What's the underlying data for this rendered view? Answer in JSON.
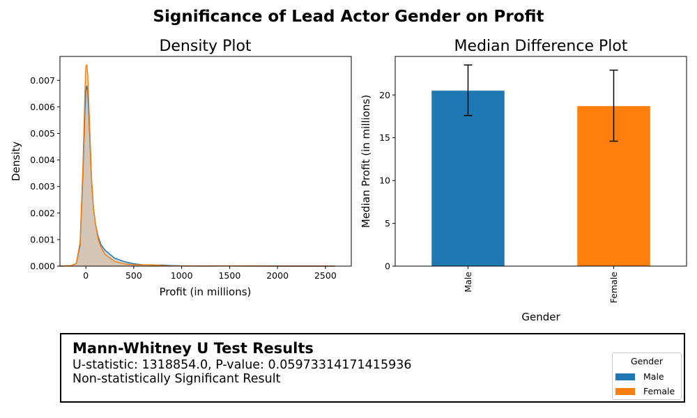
{
  "figure": {
    "suptitle": "Significance of Lead Actor Gender on Profit"
  },
  "colors": {
    "male": "#1f77b4",
    "female": "#ff7f0e",
    "fill_overlap": "#c4b09b"
  },
  "chart_data": [
    {
      "type": "area",
      "title": "Density Plot",
      "xlabel": "Profit (in millions)",
      "ylabel": "Density",
      "xlim": [
        -270,
        2770
      ],
      "ylim": [
        0,
        0.0079
      ],
      "xticks": [
        0,
        500,
        1000,
        1500,
        2000,
        2500
      ],
      "yticks": [
        "0.000",
        "0.001",
        "0.002",
        "0.003",
        "0.004",
        "0.005",
        "0.006",
        "0.007"
      ],
      "ytick_values": [
        0,
        0.001,
        0.002,
        0.003,
        0.004,
        0.005,
        0.006,
        0.007
      ],
      "grid": false,
      "series": [
        {
          "name": "Male",
          "x": [
            -270,
            -150,
            -100,
            -60,
            -30,
            -10,
            0,
            10,
            20,
            40,
            60,
            80,
            100,
            130,
            160,
            200,
            300,
            400,
            500,
            600,
            700,
            800,
            900,
            1000,
            1200,
            1500,
            1800,
            2100,
            2400,
            2600
          ],
          "y": [
            0,
            2e-05,
            0.0001,
            0.0008,
            0.0035,
            0.0058,
            0.0066,
            0.0068,
            0.0066,
            0.005,
            0.0032,
            0.0022,
            0.0016,
            0.0011,
            0.0008,
            0.0006,
            0.0003,
            0.00017,
            9e-05,
            5e-05,
            4e-05,
            4e-05,
            2e-05,
            1e-05,
            6e-06,
            4e-06,
            2e-06,
            1e-06,
            1e-06,
            0
          ]
        },
        {
          "name": "Female",
          "x": [
            -270,
            -150,
            -100,
            -60,
            -30,
            -10,
            0,
            10,
            20,
            40,
            60,
            80,
            100,
            130,
            160,
            200,
            300,
            400,
            500,
            600,
            700,
            800,
            900,
            1000,
            1200,
            1500,
            1800,
            2100,
            2400,
            2600
          ],
          "y": [
            0,
            2e-05,
            0.0001,
            0.0009,
            0.0038,
            0.0065,
            0.0075,
            0.0076,
            0.0072,
            0.0053,
            0.0033,
            0.0022,
            0.0016,
            0.001,
            0.0007,
            0.00045,
            0.00018,
            9e-05,
            5e-05,
            5e-05,
            5e-05,
            2e-05,
            1e-05,
            5e-06,
            3e-06,
            8e-06,
            2e-06,
            1e-06,
            0,
            0
          ]
        }
      ]
    },
    {
      "type": "bar",
      "title": "Median Difference Plot",
      "xlabel": "Gender",
      "ylabel": "Median Profit (in millions)",
      "categories": [
        "Male",
        "Female"
      ],
      "values": [
        20.5,
        18.7
      ],
      "error_low": [
        17.6,
        14.6
      ],
      "error_high": [
        23.5,
        22.9
      ],
      "ylim": [
        0,
        24.5
      ],
      "yticks": [
        0,
        5,
        10,
        15,
        20
      ],
      "grid": false
    }
  ],
  "results": {
    "title": "Mann-Whitney U Test Results",
    "line1": "U-statistic: 1318854.0, P-value: 0.05973314171415936",
    "line2": "Non-statistically Significant Result"
  },
  "legend": {
    "title": "Gender",
    "items": [
      "Male",
      "Female"
    ],
    "placement": "lower-right"
  }
}
